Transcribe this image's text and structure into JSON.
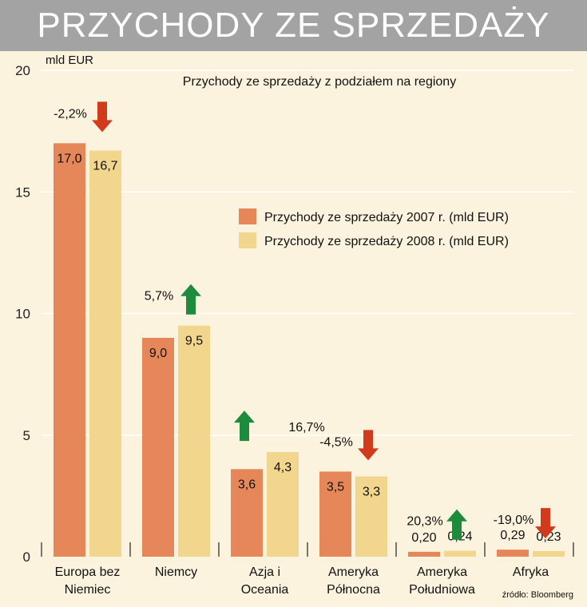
{
  "header": {
    "title": "PRZYCHODY ZE SPRZEDAŻY"
  },
  "source": "źródło: Bloomberg",
  "colors": {
    "header_bg": "#a3a3a3",
    "background": "#fcf3df",
    "series_2007": "#e6875a",
    "series_2008": "#f2d68e",
    "arrow_up": "#1e8a3c",
    "arrow_down": "#d23a1c",
    "grid": "#ffffff"
  },
  "chart_data": {
    "type": "bar",
    "title": "Przychody ze sprzedaży z podziałem na regiony",
    "ylabel": "mld EUR",
    "ylim": [
      0,
      20
    ],
    "yticks": [
      "0",
      "5",
      "10",
      "15",
      "20"
    ],
    "grid": true,
    "legend_position": "right",
    "categories": [
      [
        "Europa bez",
        "Niemiec"
      ],
      [
        "Niemcy"
      ],
      [
        "Azja i",
        "Oceania"
      ],
      [
        "Ameryka",
        "Północna"
      ],
      [
        "Ameryka",
        "Południowa"
      ],
      [
        "Afryka"
      ]
    ],
    "series": [
      {
        "name": "Przychody ze sprzedaży 2007 r. (mld EUR)",
        "values": [
          17.0,
          9.0,
          3.6,
          3.5,
          0.2,
          0.29
        ],
        "labels": [
          "17,0",
          "9,0",
          "3,6",
          "3,5",
          "0,20",
          "0,29"
        ]
      },
      {
        "name": "Przychody ze sprzedaży 2008 r. (mld EUR)",
        "values": [
          16.7,
          9.5,
          4.3,
          3.3,
          0.24,
          0.23
        ],
        "labels": [
          "16,7",
          "9,5",
          "4,3",
          "3,3",
          "0,24",
          "0,23"
        ]
      }
    ],
    "changes": [
      {
        "label": "-2,2%",
        "direction": "down"
      },
      {
        "label": "5,7%",
        "direction": "up"
      },
      {
        "label": "16,7%",
        "direction": "up"
      },
      {
        "label": "-4,5%",
        "direction": "down"
      },
      {
        "label": "20,3%",
        "direction": "up"
      },
      {
        "label": "-19,0%",
        "direction": "down"
      }
    ]
  }
}
